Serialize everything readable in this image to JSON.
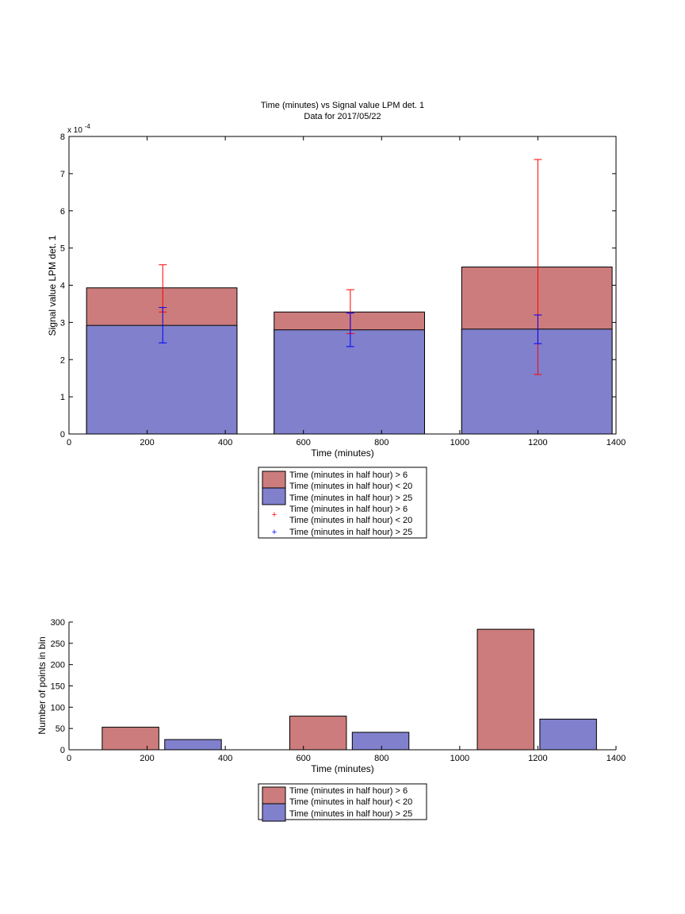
{
  "chart_data": [
    {
      "type": "bar",
      "title": "Time (minutes) vs Signal value LPM det. 1",
      "subtitle": "Data for 2017/05/22",
      "xlabel": "Time (minutes)",
      "ylabel": "Signal value LPM det. 1",
      "y_exponent_label": "x 10",
      "y_exponent": "-4",
      "xlim": [
        0,
        1400
      ],
      "ylim": [
        0,
        8
      ],
      "xticks": [
        0,
        200,
        400,
        600,
        800,
        1000,
        1200,
        1400
      ],
      "yticks": [
        0,
        1,
        2,
        3,
        4,
        5,
        6,
        7,
        8
      ],
      "grid": false,
      "legend_placement": "below",
      "colors": {
        "red_bar": "#cc7c7c",
        "blue_bar": "#8080cc",
        "red_err": "#ff0000",
        "blue_err": "#0000ff"
      },
      "bars": [
        {
          "x_start": 45,
          "x_end": 430,
          "red_value": 3.93,
          "blue_value": 2.92
        },
        {
          "x_start": 525,
          "x_end": 910,
          "red_value": 3.28,
          "blue_value": 2.8
        },
        {
          "x_start": 1005,
          "x_end": 1390,
          "red_value": 4.49,
          "blue_value": 2.82
        }
      ],
      "errorbars": [
        {
          "x": 240,
          "red_low": 3.28,
          "red_high": 4.55,
          "blue_low": 2.45,
          "blue_high": 3.4
        },
        {
          "x": 720,
          "red_low": 2.7,
          "red_high": 3.88,
          "blue_low": 2.35,
          "blue_high": 3.25
        },
        {
          "x": 1200,
          "red_low": 1.6,
          "red_high": 7.38,
          "blue_low": 2.43,
          "blue_high": 3.2
        }
      ],
      "legend": [
        "Time (minutes in half hour) > 6",
        "Time (minutes in half hour) < 20",
        "Time (minutes in half hour) > 25",
        "Time (minutes in half hour) > 6",
        "Time (minutes in half hour) < 20",
        "Time (minutes in half hour) > 25"
      ]
    },
    {
      "type": "bar",
      "xlabel": "Time (minutes)",
      "ylabel": "Number of points in bin",
      "xlim": [
        0,
        1400
      ],
      "ylim": [
        0,
        300
      ],
      "xticks": [
        0,
        200,
        400,
        600,
        800,
        1000,
        1200,
        1400
      ],
      "yticks": [
        0,
        50,
        100,
        150,
        200,
        250,
        300
      ],
      "grid": false,
      "legend_placement": "below",
      "bars": [
        {
          "x_start": 85,
          "x_end": 230,
          "value": 53,
          "series": "red"
        },
        {
          "x_start": 245,
          "x_end": 390,
          "value": 24,
          "series": "blue"
        },
        {
          "x_start": 565,
          "x_end": 710,
          "value": 79,
          "series": "red"
        },
        {
          "x_start": 725,
          "x_end": 870,
          "value": 41,
          "series": "blue"
        },
        {
          "x_start": 1045,
          "x_end": 1190,
          "value": 283,
          "series": "red"
        },
        {
          "x_start": 1205,
          "x_end": 1350,
          "value": 72,
          "series": "blue"
        }
      ],
      "legend": [
        "Time (minutes in half hour) > 6",
        "Time (minutes in half hour) < 20",
        "Time (minutes in half hour) > 25"
      ]
    }
  ]
}
